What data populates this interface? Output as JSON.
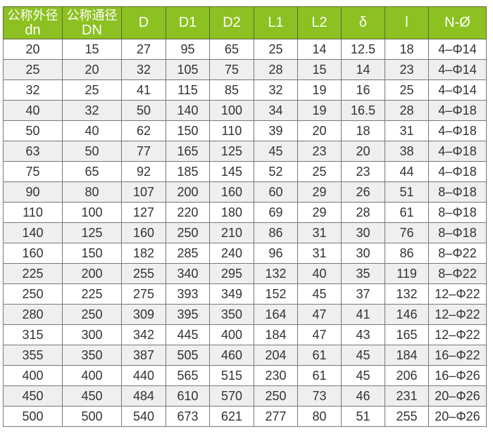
{
  "header_color": "#8cc121",
  "headers": [
    [
      "公称外径",
      "dn"
    ],
    [
      "公称通径",
      "DN"
    ],
    [
      "D"
    ],
    [
      "D1"
    ],
    [
      "D2"
    ],
    [
      "L1"
    ],
    [
      "L2"
    ],
    [
      "δ"
    ],
    [
      "l"
    ],
    [
      "N-Ø"
    ]
  ],
  "rows": [
    [
      "20",
      "15",
      "27",
      "95",
      "65",
      "25",
      "14",
      "12.5",
      "18",
      "4–Φ14"
    ],
    [
      "25",
      "20",
      "32",
      "105",
      "75",
      "28",
      "15",
      "14",
      "23",
      "4–Φ14"
    ],
    [
      "32",
      "25",
      "41",
      "115",
      "85",
      "32",
      "19",
      "16",
      "25",
      "4–Φ14"
    ],
    [
      "40",
      "32",
      "50",
      "140",
      "100",
      "34",
      "19",
      "16.5",
      "28",
      "4–Φ18"
    ],
    [
      "50",
      "40",
      "62",
      "150",
      "110",
      "39",
      "20",
      "18",
      "31",
      "4–Φ18"
    ],
    [
      "63",
      "50",
      "77",
      "165",
      "125",
      "45",
      "23",
      "20",
      "38",
      "4–Φ18"
    ],
    [
      "75",
      "65",
      "92",
      "185",
      "145",
      "52",
      "25",
      "23",
      "44",
      "4–Φ18"
    ],
    [
      "90",
      "80",
      "107",
      "200",
      "160",
      "60",
      "29",
      "26",
      "51",
      "8–Φ18"
    ],
    [
      "110",
      "100",
      "127",
      "220",
      "180",
      "69",
      "29",
      "28",
      "61",
      "8–Φ18"
    ],
    [
      "140",
      "125",
      "160",
      "250",
      "210",
      "86",
      "31",
      "30",
      "76",
      "8–Φ18"
    ],
    [
      "160",
      "150",
      "182",
      "285",
      "240",
      "96",
      "31",
      "30",
      "86",
      "8–Φ22"
    ],
    [
      "225",
      "200",
      "255",
      "340",
      "295",
      "132",
      "40",
      "35",
      "119",
      "8–Φ22"
    ],
    [
      "250",
      "225",
      "275",
      "393",
      "349",
      "152",
      "45",
      "37",
      "132",
      "12–Φ22"
    ],
    [
      "280",
      "250",
      "309",
      "395",
      "350",
      "164",
      "47",
      "41",
      "146",
      "12–Φ22"
    ],
    [
      "315",
      "300",
      "342",
      "445",
      "400",
      "184",
      "47",
      "43",
      "165",
      "12–Φ22"
    ],
    [
      "355",
      "350",
      "387",
      "505",
      "460",
      "204",
      "61",
      "45",
      "184",
      "16–Φ22"
    ],
    [
      "400",
      "400",
      "440",
      "565",
      "515",
      "230",
      "61",
      "45",
      "206",
      "16–Φ26"
    ],
    [
      "450",
      "450",
      "484",
      "610",
      "570",
      "250",
      "73",
      "46",
      "231",
      "20–Φ26"
    ],
    [
      "500",
      "500",
      "540",
      "673",
      "621",
      "277",
      "80",
      "51",
      "255",
      "20–Φ26"
    ]
  ]
}
